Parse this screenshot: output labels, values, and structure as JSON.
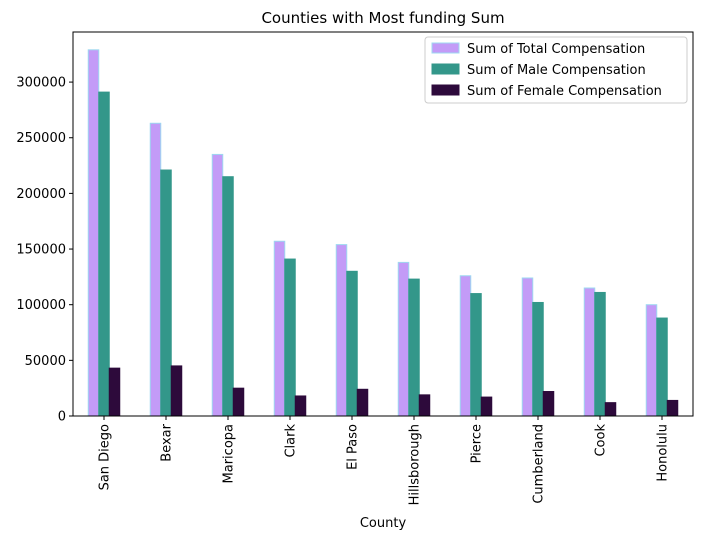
{
  "chart_data": {
    "type": "bar",
    "title": "Counties with Most funding Sum",
    "xlabel": "County",
    "ylabel": "",
    "ylim": [
      0,
      345000
    ],
    "yticks": [
      0,
      50000,
      100000,
      150000,
      200000,
      250000,
      300000
    ],
    "ytick_labels": [
      "0",
      "50000",
      "100000",
      "150000",
      "200000",
      "250000",
      "300000"
    ],
    "categories": [
      "San Diego",
      "Bexar",
      "Maricopa",
      "Clark",
      "El Paso",
      "Hillsborough",
      "Pierce",
      "Cumberland",
      "Cook",
      "Honolulu"
    ],
    "series": [
      {
        "name": "Sum of Total Compensation",
        "color": "#c39bf7",
        "edge": "#9ed8f0",
        "values": [
          329000,
          263000,
          235000,
          157000,
          154000,
          138000,
          126000,
          124000,
          115000,
          100000
        ]
      },
      {
        "name": "Sum of Male Compensation",
        "color": "#33978a",
        "edge": "#33978a",
        "values": [
          291000,
          221000,
          215000,
          141000,
          130000,
          123000,
          110000,
          102000,
          111000,
          88000
        ]
      },
      {
        "name": "Sum of Female Compensation",
        "color": "#2d0a3b",
        "edge": "#2d0a3b",
        "values": [
          43000,
          45000,
          25000,
          18000,
          24000,
          19000,
          17000,
          22000,
          12000,
          14000
        ]
      }
    ],
    "legend_position": "top-right",
    "grid": false
  }
}
